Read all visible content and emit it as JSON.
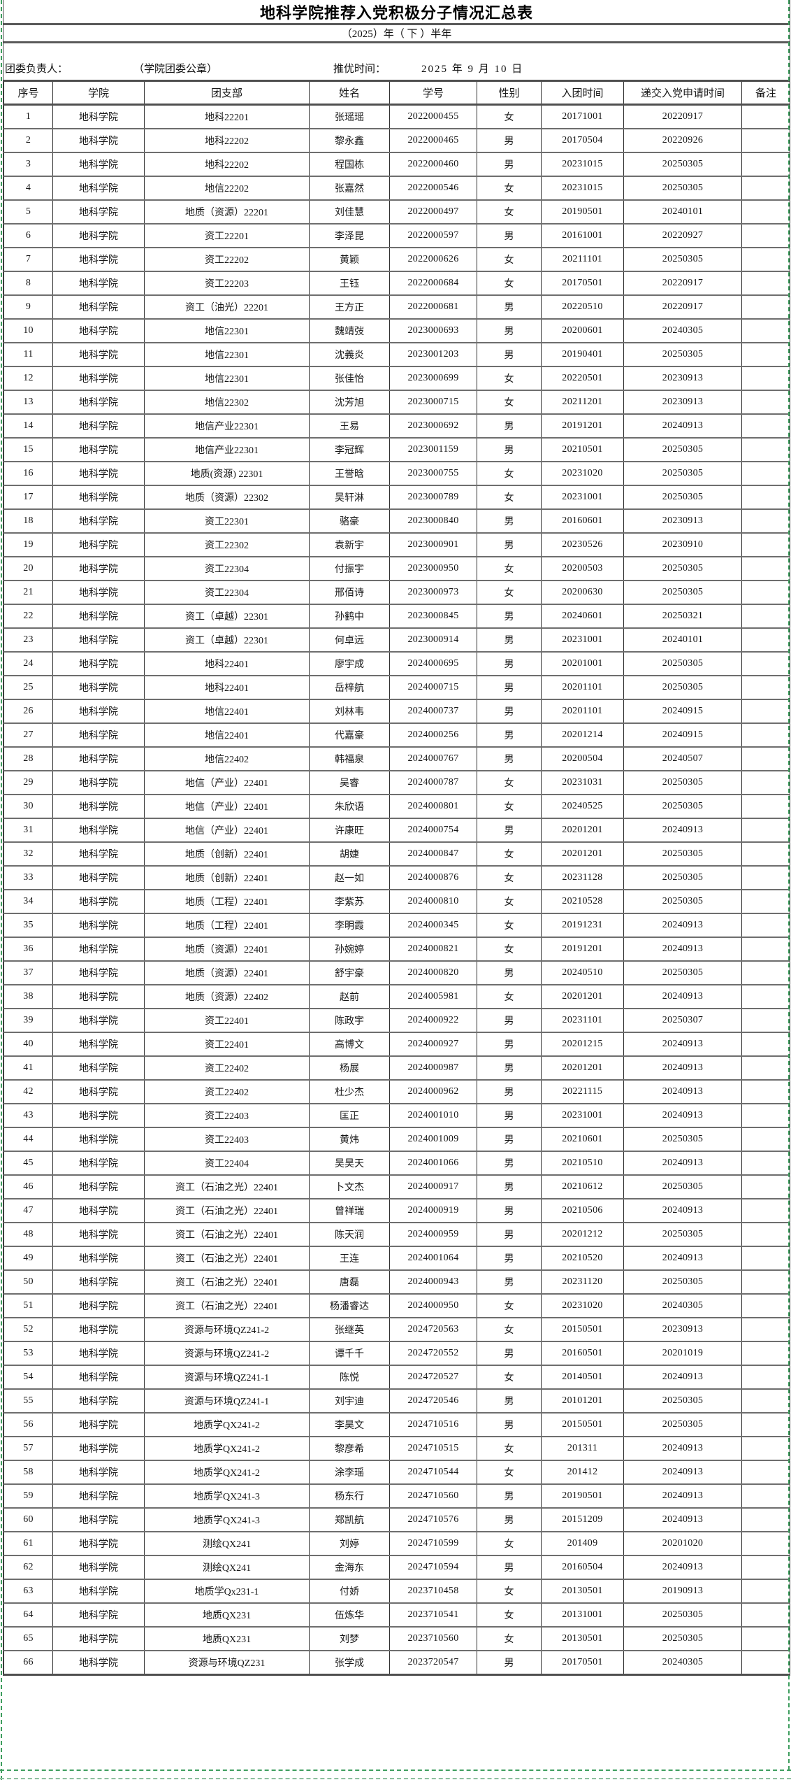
{
  "page": {
    "title": "地科学院推荐入党积极分子情况汇总表",
    "subtitle": "（2025）年（  下  ）半年",
    "info": {
      "leader_label": "团委负责人：",
      "seal_label": "（学院团委公章）",
      "time_label": "推优时间：",
      "time_value": "2025 年 9 月 10 日"
    }
  },
  "table": {
    "columns": [
      "序号",
      "学院",
      "团支部",
      "姓名",
      "学号",
      "性别",
      "入团时间",
      "递交入党申请时间",
      "备注"
    ],
    "rows": [
      [
        "1",
        "地科学院",
        "地科22201",
        "张瑶瑶",
        "2022000455",
        "女",
        "20171001",
        "20220917",
        ""
      ],
      [
        "2",
        "地科学院",
        "地科22202",
        "黎永鑫",
        "2022000465",
        "男",
        "20170504",
        "20220926",
        ""
      ],
      [
        "3",
        "地科学院",
        "地科22202",
        "程国栋",
        "2022000460",
        "男",
        "20231015",
        "20250305",
        ""
      ],
      [
        "4",
        "地科学院",
        "地信22202",
        "张嘉然",
        "2022000546",
        "女",
        "20231015",
        "20250305",
        ""
      ],
      [
        "5",
        "地科学院",
        "地质（资源）22201",
        "刘佳慧",
        "2022000497",
        "女",
        "20190501",
        "20240101",
        ""
      ],
      [
        "6",
        "地科学院",
        "资工22201",
        "李泽昆",
        "2022000597",
        "男",
        "20161001",
        "20220927",
        ""
      ],
      [
        "7",
        "地科学院",
        "资工22202",
        "黄颖",
        "2022000626",
        "女",
        "20211101",
        "20250305",
        ""
      ],
      [
        "8",
        "地科学院",
        "资工22203",
        "王钰",
        "2022000684",
        "女",
        "20170501",
        "20220917",
        ""
      ],
      [
        "9",
        "地科学院",
        "资工（油光）22201",
        "王方正",
        "2022000681",
        "男",
        "20220510",
        "20220917",
        ""
      ],
      [
        "10",
        "地科学院",
        "地信22301",
        "魏靖弢",
        "2023000693",
        "男",
        "20200601",
        "20240305",
        ""
      ],
      [
        "11",
        "地科学院",
        "地信22301",
        "沈義炎",
        "2023001203",
        "男",
        "20190401",
        "20250305",
        ""
      ],
      [
        "12",
        "地科学院",
        "地信22301",
        "张佳怡",
        "2023000699",
        "女",
        "20220501",
        "20230913",
        ""
      ],
      [
        "13",
        "地科学院",
        "地信22302",
        "沈芳旭",
        "2023000715",
        "女",
        "20211201",
        "20230913",
        ""
      ],
      [
        "14",
        "地科学院",
        "地信产业22301",
        "王易",
        "2023000692",
        "男",
        "20191201",
        "20240913",
        ""
      ],
      [
        "15",
        "地科学院",
        "地信产业22301",
        "李冠辉",
        "2023001159",
        "男",
        "20210501",
        "20250305",
        ""
      ],
      [
        "16",
        "地科学院",
        "地质(资源) 22301",
        "王誉晗",
        "2023000755",
        "女",
        "20231020",
        "20250305",
        ""
      ],
      [
        "17",
        "地科学院",
        "地质（资源）22302",
        "吴轩淋",
        "2023000789",
        "女",
        "20231001",
        "20250305",
        ""
      ],
      [
        "18",
        "地科学院",
        "资工22301",
        "骆豪",
        "2023000840",
        "男",
        "20160601",
        "20230913",
        ""
      ],
      [
        "19",
        "地科学院",
        "资工22302",
        "袁新宇",
        "2023000901",
        "男",
        "20230526",
        "20230910",
        ""
      ],
      [
        "20",
        "地科学院",
        "资工22304",
        "付振宇",
        "2023000950",
        "女",
        "20200503",
        "20250305",
        ""
      ],
      [
        "21",
        "地科学院",
        "资工22304",
        "邢佰诗",
        "2023000973",
        "女",
        "20200630",
        "20250305",
        ""
      ],
      [
        "22",
        "地科学院",
        "资工（卓越）22301",
        "孙鹤中",
        "2023000845",
        "男",
        "20240601",
        "20250321",
        ""
      ],
      [
        "23",
        "地科学院",
        "资工（卓越）22301",
        "何卓远",
        "2023000914",
        "男",
        "20231001",
        "20240101",
        ""
      ],
      [
        "24",
        "地科学院",
        "地科22401",
        "廖宇成",
        "2024000695",
        "男",
        "20201001",
        "20250305",
        ""
      ],
      [
        "25",
        "地科学院",
        "地科22401",
        "岳梓航",
        "2024000715",
        "男",
        "20201101",
        "20250305",
        ""
      ],
      [
        "26",
        "地科学院",
        "地信22401",
        "刘林韦",
        "2024000737",
        "男",
        "20201101",
        "20240915",
        ""
      ],
      [
        "27",
        "地科学院",
        "地信22401",
        "代嘉豪",
        "2024000256",
        "男",
        "20201214",
        "20240915",
        ""
      ],
      [
        "28",
        "地科学院",
        "地信22402",
        "韩福泉",
        "2024000767",
        "男",
        "20200504",
        "20240507",
        ""
      ],
      [
        "29",
        "地科学院",
        "地信（产业）22401",
        "吴睿",
        "2024000787",
        "女",
        "20231031",
        "20250305",
        ""
      ],
      [
        "30",
        "地科学院",
        "地信（产业）22401",
        "朱欣语",
        "2024000801",
        "女",
        "20240525",
        "20250305",
        ""
      ],
      [
        "31",
        "地科学院",
        "地信（产业）22401",
        "许康旺",
        "2024000754",
        "男",
        "20201201",
        "20240913",
        ""
      ],
      [
        "32",
        "地科学院",
        "地质（创新）22401",
        "胡婕",
        "2024000847",
        "女",
        "20201201",
        "20250305",
        ""
      ],
      [
        "33",
        "地科学院",
        "地质（创新）22401",
        "赵一如",
        "2024000876",
        "女",
        "20231128",
        "20250305",
        ""
      ],
      [
        "34",
        "地科学院",
        "地质（工程）22401",
        "李紫苏",
        "2024000810",
        "女",
        "20210528",
        "20250305",
        ""
      ],
      [
        "35",
        "地科学院",
        "地质（工程）22401",
        "李明霞",
        "2024000345",
        "女",
        "20191231",
        "20240913",
        ""
      ],
      [
        "36",
        "地科学院",
        "地质（资源）22401",
        "孙婉婷",
        "2024000821",
        "女",
        "20191201",
        "20240913",
        ""
      ],
      [
        "37",
        "地科学院",
        "地质（资源）22401",
        "舒宇豪",
        "2024000820",
        "男",
        "20240510",
        "20250305",
        ""
      ],
      [
        "38",
        "地科学院",
        "地质（资源）22402",
        "赵前",
        "2024005981",
        "女",
        "20201201",
        "20240913",
        ""
      ],
      [
        "39",
        "地科学院",
        "资工22401",
        "陈政宇",
        "2024000922",
        "男",
        "20231101",
        "20250307",
        ""
      ],
      [
        "40",
        "地科学院",
        "资工22401",
        "高博文",
        "2024000927",
        "男",
        "20201215",
        "20240913",
        ""
      ],
      [
        "41",
        "地科学院",
        "资工22402",
        "杨展",
        "2024000987",
        "男",
        "20201201",
        "20240913",
        ""
      ],
      [
        "42",
        "地科学院",
        "资工22402",
        "杜少杰",
        "2024000962",
        "男",
        "20221115",
        "20240913",
        ""
      ],
      [
        "43",
        "地科学院",
        "资工22403",
        "匡正",
        "2024001010",
        "男",
        "20231001",
        "20240913",
        ""
      ],
      [
        "44",
        "地科学院",
        "资工22403",
        "黄炜",
        "2024001009",
        "男",
        "20210601",
        "20250305",
        ""
      ],
      [
        "45",
        "地科学院",
        "资工22404",
        "吴昊天",
        "2024001066",
        "男",
        "20210510",
        "20240913",
        ""
      ],
      [
        "46",
        "地科学院",
        "资工（石油之光）22401",
        "卜文杰",
        "2024000917",
        "男",
        "20210612",
        "20250305",
        ""
      ],
      [
        "47",
        "地科学院",
        "资工（石油之光）22401",
        "曾祥瑞",
        "2024000919",
        "男",
        "20210506",
        "20240913",
        ""
      ],
      [
        "48",
        "地科学院",
        "资工（石油之光）22401",
        "陈天润",
        "2024000959",
        "男",
        "20201212",
        "20250305",
        ""
      ],
      [
        "49",
        "地科学院",
        "资工（石油之光）22401",
        "王连",
        "2024001064",
        "男",
        "20210520",
        "20240913",
        ""
      ],
      [
        "50",
        "地科学院",
        "资工（石油之光）22401",
        "唐磊",
        "2024000943",
        "男",
        "20231120",
        "20250305",
        ""
      ],
      [
        "51",
        "地科学院",
        "资工（石油之光）22401",
        "杨潘睿达",
        "2024000950",
        "女",
        "20231020",
        "20240305",
        ""
      ],
      [
        "52",
        "地科学院",
        "资源与环境QZ241-2",
        "张继英",
        "2024720563",
        "女",
        "20150501",
        "20230913",
        ""
      ],
      [
        "53",
        "地科学院",
        "资源与环境QZ241-2",
        "谭千千",
        "2024720552",
        "男",
        "20160501",
        "20201019",
        ""
      ],
      [
        "54",
        "地科学院",
        "资源与环境QZ241-1",
        "陈悦",
        "2024720527",
        "女",
        "20140501",
        "20240913",
        ""
      ],
      [
        "55",
        "地科学院",
        "资源与环境QZ241-1",
        "刘宇迪",
        "2024720546",
        "男",
        "20101201",
        "20250305",
        ""
      ],
      [
        "56",
        "地科学院",
        "地质学QX241-2",
        "李昊文",
        "2024710516",
        "男",
        "20150501",
        "20250305",
        ""
      ],
      [
        "57",
        "地科学院",
        "地质学QX241-2",
        "黎彦希",
        "2024710515",
        "女",
        "201311",
        "20240913",
        ""
      ],
      [
        "58",
        "地科学院",
        "地质学QX241-2",
        "涂李瑶",
        "2024710544",
        "女",
        "201412",
        "20240913",
        ""
      ],
      [
        "59",
        "地科学院",
        "地质学QX241-3",
        "杨东行",
        "2024710560",
        "男",
        "20190501",
        "20240913",
        ""
      ],
      [
        "60",
        "地科学院",
        "地质学QX241-3",
        "郑凯航",
        "2024710576",
        "男",
        "20151209",
        "20240913",
        ""
      ],
      [
        "61",
        "地科学院",
        "测绘QX241",
        "刘婷",
        "2024710599",
        "女",
        "201409",
        "20201020",
        ""
      ],
      [
        "62",
        "地科学院",
        "测绘QX241",
        "金海东",
        "2024710594",
        "男",
        "20160504",
        "20240913",
        ""
      ],
      [
        "63",
        "地科学院",
        "地质学Qx231-1",
        "付娇",
        "2023710458",
        "女",
        "20130501",
        "20190913",
        ""
      ],
      [
        "64",
        "地科学院",
        "地质QX231",
        "伍炼华",
        "2023710541",
        "女",
        "20131001",
        "20250305",
        ""
      ],
      [
        "65",
        "地科学院",
        "地质QX231",
        "刘梦",
        "2023710560",
        "女",
        "20130501",
        "20250305",
        ""
      ],
      [
        "66",
        "地科学院",
        "资源与环境QZ231",
        "张学成",
        "2023720547",
        "男",
        "20170501",
        "20240305",
        ""
      ]
    ]
  }
}
